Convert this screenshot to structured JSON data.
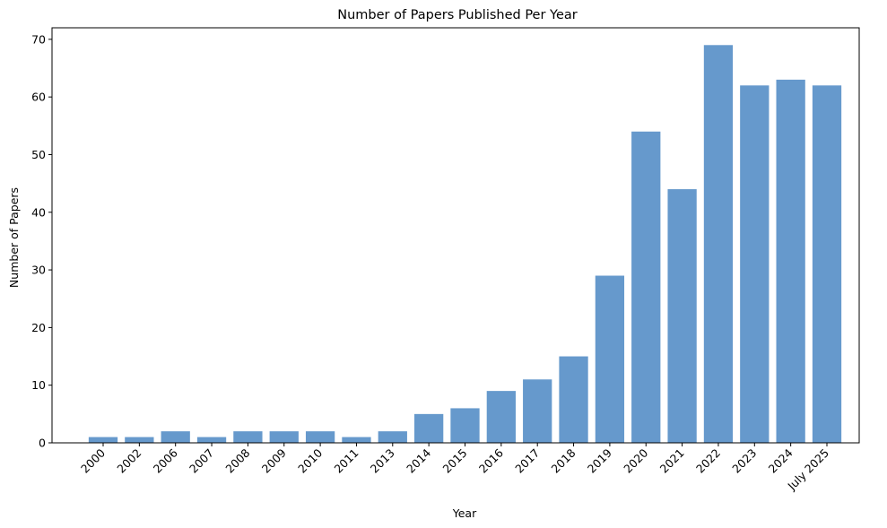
{
  "chart_data": {
    "type": "bar",
    "title": "Number of Papers Published Per Year",
    "xlabel": "Year",
    "ylabel": "Number of Papers",
    "categories": [
      "2000",
      "2002",
      "2006",
      "2007",
      "2008",
      "2009",
      "2010",
      "2011",
      "2013",
      "2014",
      "2015",
      "2016",
      "2017",
      "2018",
      "2019",
      "2020",
      "2021",
      "2022",
      "2023",
      "2024",
      "July 2025"
    ],
    "values": [
      1,
      1,
      2,
      1,
      2,
      2,
      2,
      1,
      2,
      5,
      6,
      9,
      11,
      15,
      29,
      54,
      44,
      69,
      62,
      63,
      62
    ],
    "ylim": [
      0,
      72
    ],
    "yticks": [
      0,
      10,
      20,
      30,
      40,
      50,
      60,
      70
    ],
    "bar_color": "#6699cc",
    "grid": false,
    "legend": "none"
  }
}
